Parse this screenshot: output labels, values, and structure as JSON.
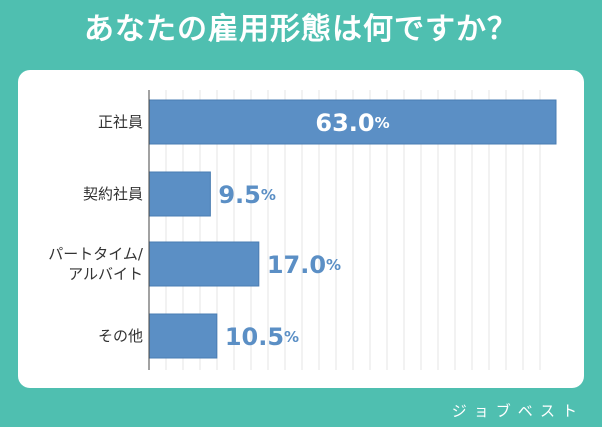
{
  "title": "あなたの雇用形態は何ですか？",
  "brand": "ジョブベスト",
  "colors": {
    "background": "#4fbfb0",
    "card": "#ffffff",
    "bar": "#5b8fc5",
    "bar_border": "#4a7db3",
    "value_text": "#5b8fc5",
    "value_text_inside": "#ffffff",
    "category_text": "#333333",
    "grid": "#e4e4e4",
    "axis": "#444444"
  },
  "chart_data": {
    "type": "bar",
    "orientation": "horizontal",
    "categories": [
      [
        "正社員"
      ],
      [
        "契約社員"
      ],
      [
        "パートタイム/",
        "アルバイト"
      ],
      [
        "その他"
      ]
    ],
    "values": [
      63.0,
      9.5,
      17.0,
      10.5
    ],
    "value_labels": [
      "63.0",
      "9.5",
      "17.0",
      "10.5"
    ],
    "unit": "%",
    "xlim": [
      0,
      63.0
    ],
    "grid": true
  }
}
